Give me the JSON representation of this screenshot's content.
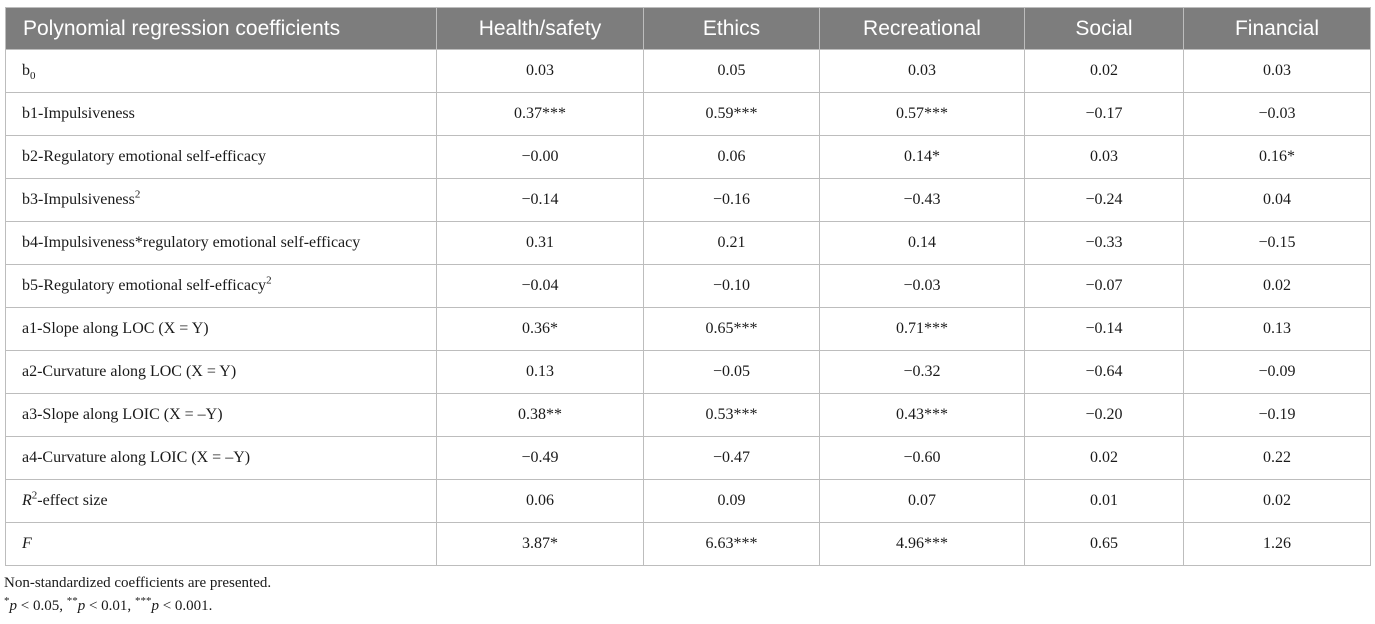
{
  "table": {
    "columns": [
      "Polynomial regression coefficients",
      "Health/safety",
      "Ethics",
      "Recreational",
      "Social",
      "Financial"
    ],
    "rows": [
      {
        "label": "b",
        "sub": "0",
        "values": [
          "0.03",
          "0.05",
          "0.03",
          "0.02",
          "0.03"
        ]
      },
      {
        "label": "b1-Impulsiveness",
        "values": [
          "0.37***",
          "0.59***",
          "0.57***",
          "−0.17",
          "−0.03"
        ]
      },
      {
        "label": "b2-Regulatory emotional self-efficacy",
        "values": [
          "−0.00",
          "0.06",
          "0.14*",
          "0.03",
          "0.16*"
        ]
      },
      {
        "label": "b3-Impulsiveness",
        "sup": "2",
        "values": [
          "−0.14",
          "−0.16",
          "−0.43",
          "−0.24",
          "0.04"
        ]
      },
      {
        "label": "b4-Impulsiveness*regulatory emotional self-efficacy",
        "values": [
          "0.31",
          "0.21",
          "0.14",
          "−0.33",
          "−0.15"
        ]
      },
      {
        "label": "b5-Regulatory emotional self-efficacy",
        "sup": "2",
        "values": [
          "−0.04",
          "−0.10",
          "−0.03",
          "−0.07",
          "0.02"
        ]
      },
      {
        "label": "a1-Slope along LOC (X = Y)",
        "values": [
          "0.36*",
          "0.65***",
          "0.71***",
          "−0.14",
          "0.13"
        ]
      },
      {
        "label": "a2-Curvature along LOC (X = Y)",
        "values": [
          "0.13",
          "−0.05",
          "−0.32",
          "−0.64",
          "−0.09"
        ]
      },
      {
        "label": "a3-Slope along LOIC (X = –Y)",
        "values": [
          "0.38**",
          "0.53***",
          "0.43***",
          "−0.20",
          "−0.19"
        ]
      },
      {
        "label": "a4-Curvature along LOIC (X = –Y)",
        "values": [
          "−0.49",
          "−0.47",
          "−0.60",
          "0.02",
          "0.22"
        ]
      },
      {
        "label_italic": "R",
        "sup": "2",
        "label": "-effect size",
        "values": [
          "0.06",
          "0.09",
          "0.07",
          "0.01",
          "0.02"
        ]
      },
      {
        "label_italic": "F",
        "label": "",
        "values": [
          "3.87*",
          "6.63***",
          "4.96***",
          "0.65",
          "1.26"
        ]
      }
    ]
  },
  "notes": {
    "line1": "Non-standardized coefficients are presented.",
    "line2": "*p < 0.05, **p < 0.01, ***p < 0.001."
  }
}
